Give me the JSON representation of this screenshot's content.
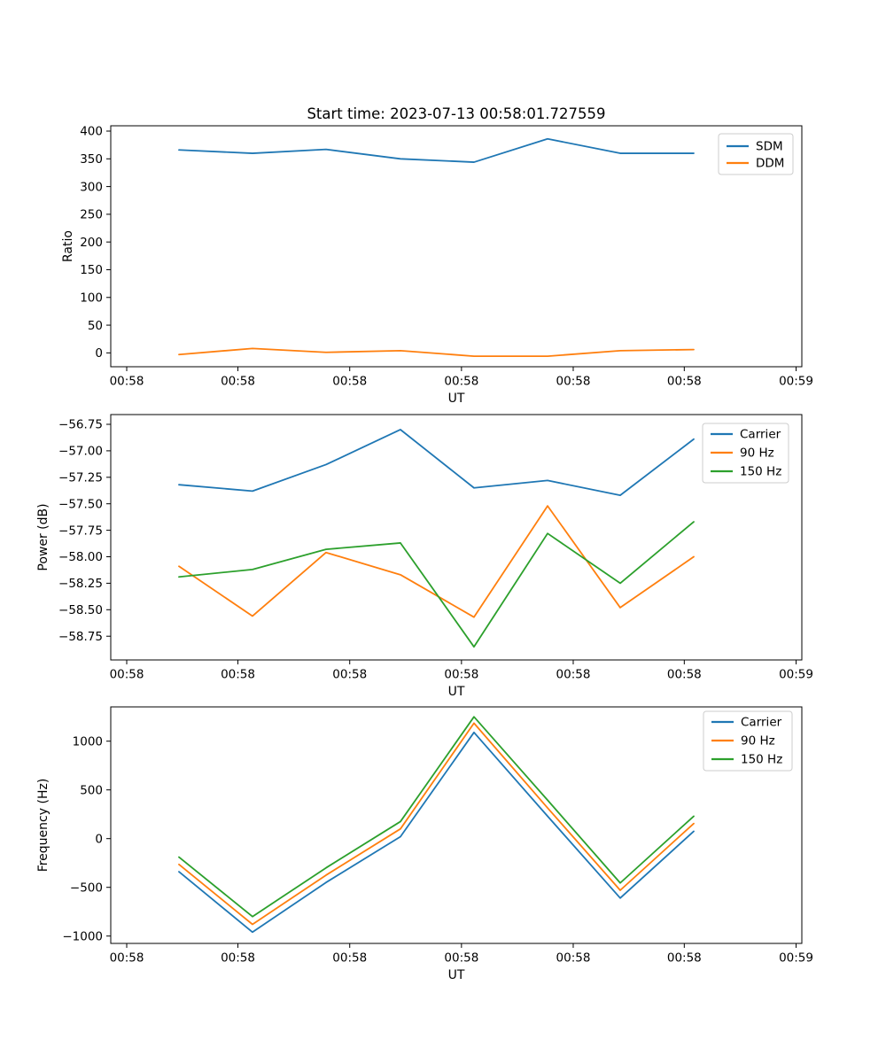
{
  "figure": {
    "background": "#ffffff",
    "text_color": "#000000"
  },
  "palette": {
    "blue": "#1f77b4",
    "orange": "#ff7f0e",
    "green": "#2ca02c",
    "spine": "#000000"
  },
  "x_axis": {
    "label": "UT",
    "tick_positions": [
      0.0231,
      0.184,
      0.3458,
      0.5075,
      0.6692,
      0.8299,
      0.9917
    ],
    "point_positions": [
      0.0987,
      0.2051,
      0.3115,
      0.4192,
      0.5256,
      0.6321,
      0.7372,
      0.8436
    ]
  },
  "chart_data": [
    {
      "type": "line",
      "title": "Start time: 2023-07-13 00:58:01.727559",
      "xlabel": "UT",
      "ylabel": "Ratio",
      "ylim": [
        -25,
        409.6
      ],
      "yticks": [
        400,
        350,
        300,
        250,
        200,
        150,
        100,
        50,
        0
      ],
      "ytick_labels": [
        "400",
        "350",
        "300",
        "250",
        "200",
        "150",
        "100",
        "50",
        "0"
      ],
      "x_tick_labels": [
        "00:58",
        "00:58",
        "00:58",
        "00:58",
        "00:58",
        "00:58",
        "00:59"
      ],
      "legend_entries": [
        "SDM",
        "DDM"
      ],
      "series": [
        {
          "name": "SDM",
          "color": "#1f77b4",
          "values": [
            366,
            360,
            367,
            350,
            344,
            386,
            360,
            360
          ]
        },
        {
          "name": "DDM",
          "color": "#ff7f0e",
          "values": [
            -3,
            8,
            1,
            4,
            -6,
            -6,
            4,
            6
          ]
        }
      ]
    },
    {
      "type": "line",
      "title": "",
      "xlabel": "UT",
      "ylabel": "Power (dB)",
      "ylim": [
        -58.974,
        -56.658
      ],
      "yticks": [
        -56.75,
        -57.0,
        -57.25,
        -57.5,
        -57.75,
        -58.0,
        -58.25,
        -58.5,
        -58.75
      ],
      "ytick_labels": [
        "−56.75",
        "−57.00",
        "−57.25",
        "−57.50",
        "−57.75",
        "−58.00",
        "−58.25",
        "−58.50",
        "−58.75"
      ],
      "x_tick_labels": [
        "00:58",
        "00:58",
        "00:58",
        "00:58",
        "00:58",
        "00:58",
        "00:59"
      ],
      "legend_entries": [
        "Carrier",
        "90 Hz",
        "150 Hz"
      ],
      "series": [
        {
          "name": "Carrier",
          "color": "#1f77b4",
          "values": [
            -57.32,
            -57.38,
            -57.13,
            -56.8,
            -57.35,
            -57.28,
            -57.42,
            -56.89
          ]
        },
        {
          "name": "90 Hz",
          "color": "#ff7f0e",
          "values": [
            -58.09,
            -58.56,
            -57.96,
            -58.17,
            -58.57,
            -57.52,
            -58.48,
            -58.0
          ]
        },
        {
          "name": "150 Hz",
          "color": "#2ca02c",
          "values": [
            -58.19,
            -58.12,
            -57.93,
            -57.87,
            -58.85,
            -57.78,
            -58.25,
            -57.67
          ]
        }
      ]
    },
    {
      "type": "line",
      "title": "",
      "xlabel": "UT",
      "ylabel": "Frequency (Hz)",
      "ylim": [
        -1075.5,
        1351.8
      ],
      "yticks": [
        1000,
        500,
        0,
        -500,
        -1000
      ],
      "ytick_labels": [
        "1000",
        "500",
        "0",
        "−500",
        "−1000"
      ],
      "x_tick_labels": [
        "00:58",
        "00:58",
        "00:58",
        "00:58",
        "00:58",
        "00:58",
        "00:59"
      ],
      "legend_entries": [
        "Carrier",
        "90 Hz",
        "150 Hz"
      ],
      "series": [
        {
          "name": "Carrier",
          "color": "#1f77b4",
          "values": [
            -340,
            -960,
            -450,
            20,
            1090,
            230,
            -610,
            75
          ]
        },
        {
          "name": "90 Hz",
          "color": "#ff7f0e",
          "values": [
            -265,
            -880,
            -375,
            100,
            1185,
            315,
            -530,
            155
          ]
        },
        {
          "name": "150 Hz",
          "color": "#2ca02c",
          "values": [
            -190,
            -800,
            -300,
            175,
            1250,
            395,
            -455,
            230
          ]
        }
      ]
    }
  ]
}
